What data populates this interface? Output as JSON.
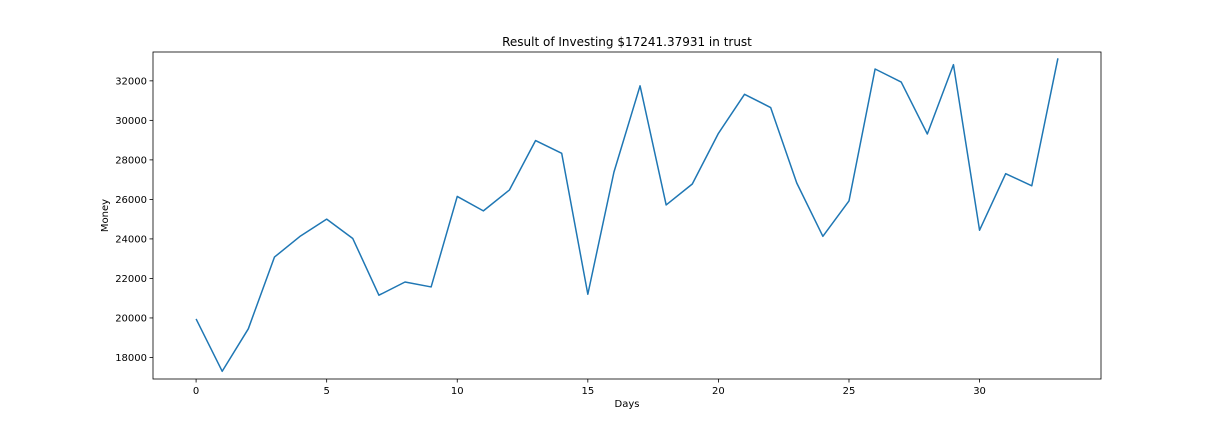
{
  "chart_data": {
    "type": "line",
    "title": "Result of Investing $17241.37931 in trust",
    "xlabel": "Days",
    "ylabel": "Money",
    "xlim": [
      -1.65,
      34.65
    ],
    "ylim": [
      16910,
      33460
    ],
    "xticks": [
      0,
      5,
      10,
      15,
      20,
      25,
      30
    ],
    "yticks": [
      18000,
      20000,
      22000,
      24000,
      26000,
      28000,
      30000,
      32000
    ],
    "grid": false,
    "series": [
      {
        "color": "#1f77b4",
        "x": [
          0,
          1,
          2,
          3,
          4,
          5,
          6,
          7,
          8,
          9,
          10,
          11,
          12,
          13,
          14,
          15,
          16,
          17,
          18,
          19,
          20,
          21,
          22,
          23,
          24,
          25,
          26,
          27,
          28,
          29,
          30,
          31,
          32,
          33
        ],
        "y": [
          19950,
          17300,
          19450,
          23080,
          24150,
          25000,
          24020,
          21150,
          21820,
          21570,
          26150,
          25420,
          26480,
          28980,
          28330,
          21200,
          27380,
          31750,
          25720,
          26780,
          29340,
          31320,
          30650,
          26830,
          24130,
          25920,
          32600,
          31940,
          29310,
          32820,
          24440,
          27300,
          26690,
          33140
        ]
      }
    ]
  }
}
